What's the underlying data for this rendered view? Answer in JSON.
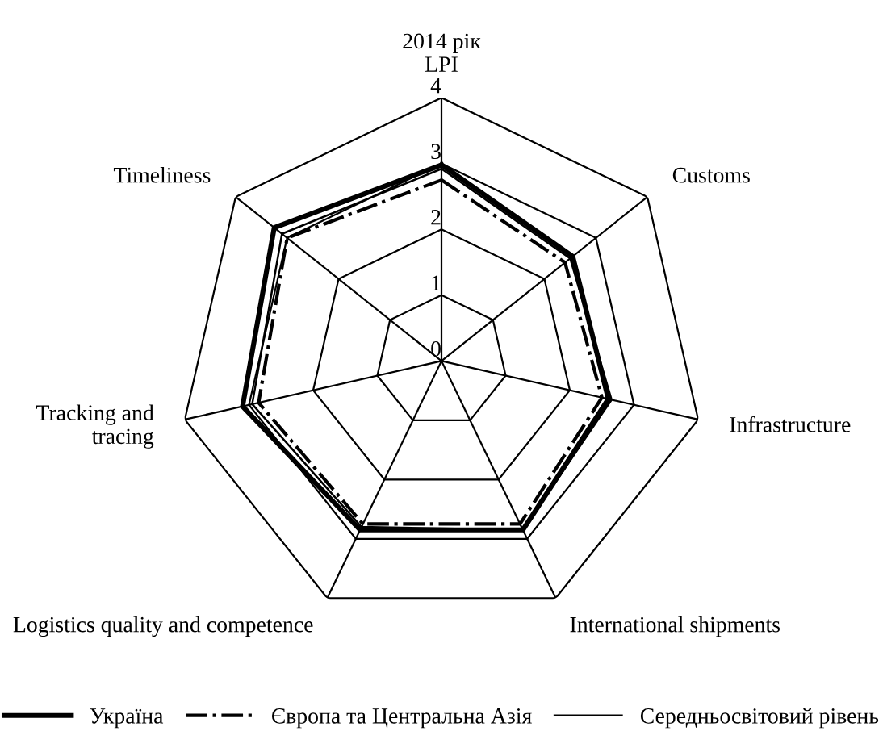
{
  "chart_data": {
    "type": "radar",
    "title": "2014 рік",
    "categories": [
      "LPI",
      "Customs",
      "Infrastructure",
      "International shipments",
      "Logistics quality and competence",
      "Tracking and tracing",
      "Timeliness"
    ],
    "series": [
      {
        "name": "Україна",
        "color": "#000000",
        "line_style": "solid",
        "values": [
          2.98,
          2.55,
          2.6,
          2.85,
          2.85,
          3.1,
          3.25
        ]
      },
      {
        "name": "Європа та Центральна Азія",
        "color": "#000000",
        "line_style": "dashdot",
        "values": [
          2.75,
          2.4,
          2.5,
          2.75,
          2.75,
          2.85,
          3.0
        ]
      },
      {
        "name": "Середньосвітовий рівень",
        "color": "#000000",
        "line_style": "solid",
        "values": [
          2.92,
          2.5,
          2.65,
          2.85,
          2.8,
          2.95,
          3.1
        ]
      }
    ],
    "ylim": [
      0,
      4
    ],
    "yticks": [
      0,
      1,
      2,
      3,
      4
    ],
    "grid": true,
    "legend": "bottom",
    "marker": "none"
  }
}
